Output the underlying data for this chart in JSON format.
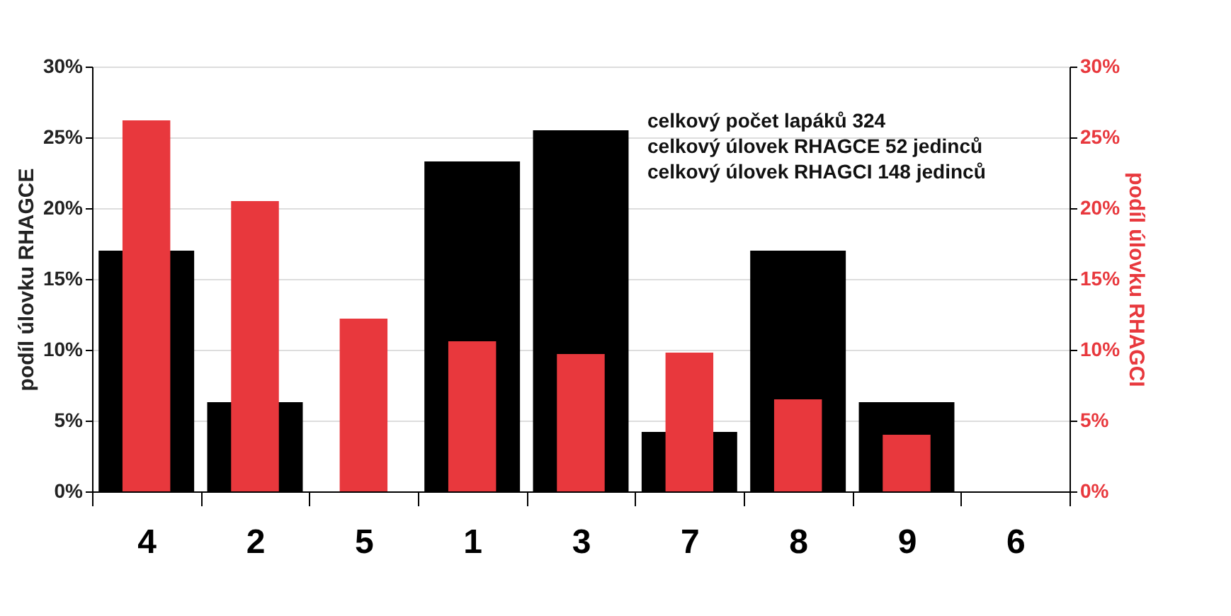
{
  "chart_data": {
    "type": "bar",
    "ylabel": "podíl úlovku RHAGCE",
    "y2label": "podíl úlovku RHAGCI",
    "categories": [
      "4",
      "2",
      "5",
      "1",
      "3",
      "7",
      "8",
      "9",
      "6"
    ],
    "series": [
      {
        "color": "#000000",
        "values": [
          17.0,
          6.3,
          0,
          23.3,
          25.5,
          4.2,
          17.0,
          6.3,
          0
        ]
      },
      {
        "color": "#e8383d",
        "axis": "y2",
        "values": [
          26.2,
          20.5,
          12.2,
          10.6,
          9.7,
          9.8,
          6.5,
          4.0,
          0
        ]
      }
    ],
    "ylim": [
      0,
      30
    ],
    "yticks": [
      {
        "value": 0,
        "label": "0%"
      },
      {
        "value": 5,
        "label": "5%"
      },
      {
        "value": 10,
        "label": "10%"
      },
      {
        "value": 15,
        "label": "15%"
      },
      {
        "value": 20,
        "label": "20%"
      },
      {
        "value": 25,
        "label": "25%"
      },
      {
        "value": 30,
        "label": "30%"
      }
    ],
    "y2lim": [
      0,
      30
    ],
    "y2ticks": [
      {
        "value": 0,
        "label": "0%"
      },
      {
        "value": 5,
        "label": "5%"
      },
      {
        "value": 10,
        "label": "10%"
      },
      {
        "value": 15,
        "label": "15%"
      },
      {
        "value": 20,
        "label": "20%"
      },
      {
        "value": 25,
        "label": "25%"
      },
      {
        "value": 30,
        "label": "30%"
      }
    ],
    "grid": "y",
    "annotations": [
      "celkový počet lapáků      324",
      "celkový úlovek RHAGCE    52 jedinců",
      "celkový úlovek RHAGCI   148 jedinců"
    ]
  }
}
